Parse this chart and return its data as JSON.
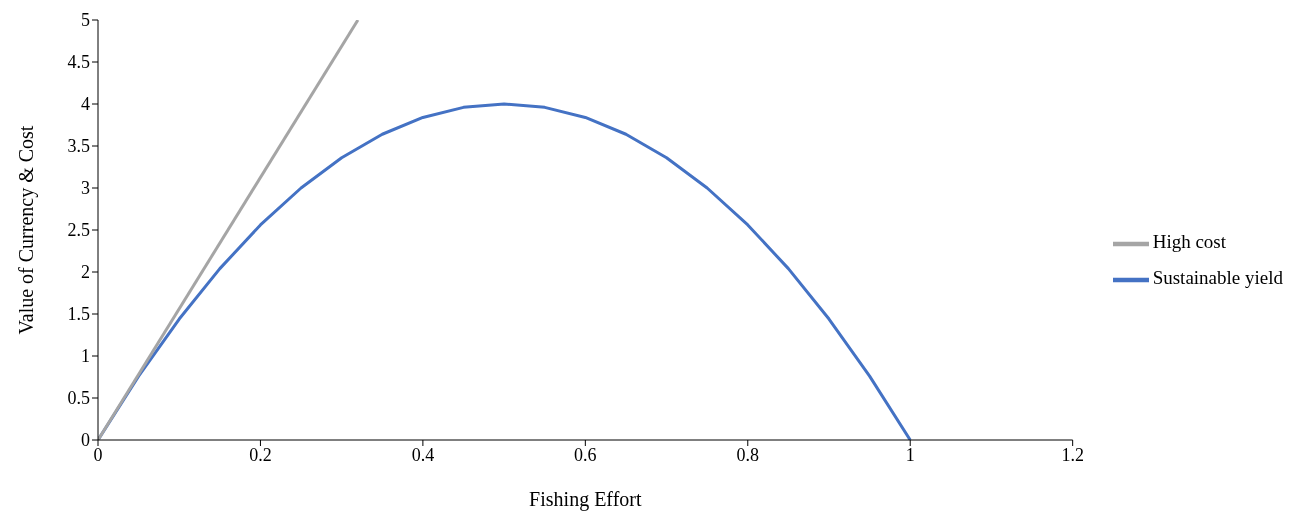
{
  "chart_data": {
    "type": "line",
    "xlabel": "Fishing Effort",
    "ylabel": "Value of Currency & Cost",
    "xlim": [
      0,
      1.2
    ],
    "xticks": [
      0,
      0.2,
      0.4,
      0.6,
      0.8,
      1,
      1.2
    ],
    "ylim": [
      0,
      5
    ],
    "yticks": [
      0,
      0.5,
      1,
      1.5,
      2,
      2.5,
      3,
      3.5,
      4,
      4.5,
      5
    ],
    "grid": false,
    "legend": "right",
    "marker": "none",
    "line_style": "solid",
    "series": [
      {
        "name": "Sustainable yield",
        "color": "#4472c4",
        "x": [
          0,
          0.05,
          0.1,
          0.15,
          0.2,
          0.25,
          0.3,
          0.35,
          0.4,
          0.45,
          0.5,
          0.55,
          0.6,
          0.65,
          0.7,
          0.75,
          0.8,
          0.85,
          0.9,
          0.95,
          1
        ],
        "values": [
          0,
          0.76,
          1.44,
          2.04,
          2.56,
          3,
          3.36,
          3.64,
          3.84,
          3.96,
          4,
          3.96,
          3.84,
          3.64,
          3.36,
          3,
          2.56,
          2.04,
          1.44,
          0.76,
          0
        ]
      },
      {
        "name": "High cost",
        "color": "#a5a5a5",
        "x": [
          0,
          0.32
        ],
        "values": [
          0,
          5
        ]
      }
    ]
  }
}
